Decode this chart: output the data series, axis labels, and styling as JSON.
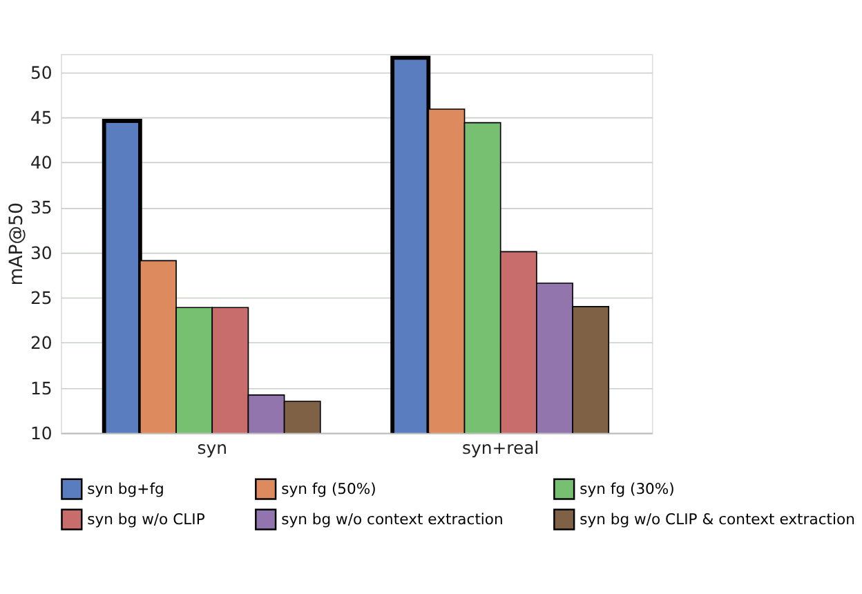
{
  "chart_data": {
    "type": "bar",
    "ylabel": "mAP@50",
    "categories": [
      "syn",
      "syn+real"
    ],
    "series": [
      {
        "name": "syn bg+fg",
        "color": "#5a7dc0",
        "values": [
          44.6,
          51.6
        ]
      },
      {
        "name": "syn fg (50%)",
        "color": "#dd8a5e",
        "values": [
          29.1,
          45.9
        ]
      },
      {
        "name": "syn fg (30%)",
        "color": "#77c072",
        "values": [
          23.9,
          44.4
        ]
      },
      {
        "name": "syn bg w/o CLIP",
        "color": "#c96c6c",
        "values": [
          23.9,
          30.1
        ]
      },
      {
        "name": "syn bg w/o context extraction",
        "color": "#9275ad",
        "values": [
          14.2,
          26.6
        ]
      },
      {
        "name": "syn bg w/o CLIP & context extraction",
        "color": "#7f6245",
        "values": [
          13.5,
          24.0
        ]
      }
    ],
    "ylim": [
      10,
      52
    ],
    "yticks": [
      10,
      15,
      20,
      25,
      30,
      35,
      40,
      45,
      50
    ],
    "grid": "y",
    "legend": "bottom"
  }
}
